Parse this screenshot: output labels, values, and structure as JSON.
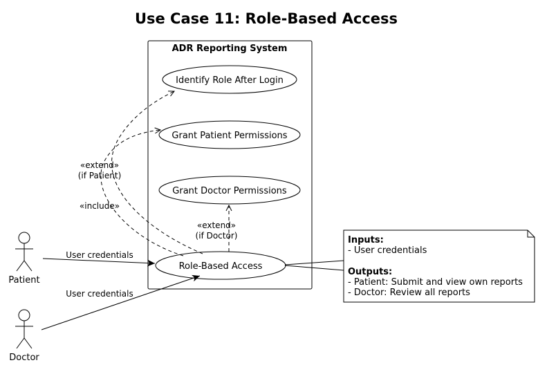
{
  "diagram": {
    "title": "Use Case 11: Role-Based Access",
    "system": {
      "name": "ADR Reporting System"
    },
    "use_cases": {
      "identify_role": "Identify Role After Login",
      "grant_patient": "Grant Patient Permissions",
      "grant_doctor": "Grant Doctor Permissions",
      "role_access": "Role-Based Access"
    },
    "actors": {
      "patient": "Patient",
      "doctor": "Doctor"
    },
    "relations": {
      "patient_credentials": "User credentials",
      "doctor_credentials": "User credentials",
      "include": "«include»",
      "extend_patient_stereotype": "«extend»",
      "extend_patient_condition": "(if Patient)",
      "extend_doctor_stereotype": "«extend»",
      "extend_doctor_condition": "(if Doctor)"
    },
    "note": {
      "inputs_heading": "Inputs:",
      "inputs_item": "- User credentials",
      "outputs_heading": "Outputs:",
      "outputs_patient": "- Patient: Submit and view own reports",
      "outputs_doctor": "- Doctor: Review all reports"
    }
  }
}
